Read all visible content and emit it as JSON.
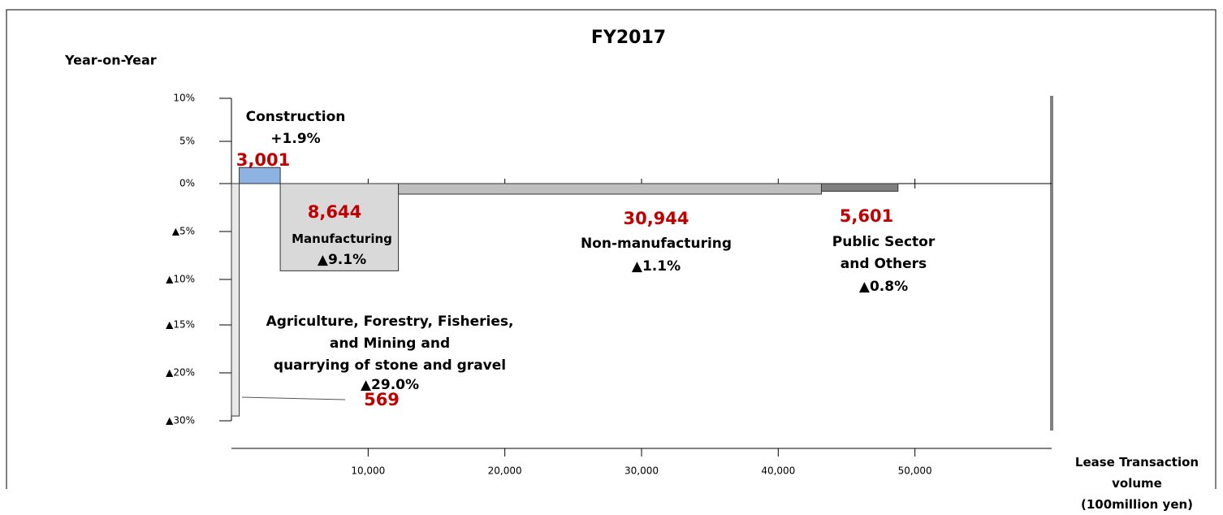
{
  "chart_data": {
    "type": "marimekko",
    "title": "FY2017",
    "ylabel": "Year-on-Year",
    "xlabel": "Lease Transaction volume\n(100million yen)",
    "categories": [
      "Agriculture, Forestry, Fisheries,\nand Mining and\nquarrying of stone and gravel",
      "Construction",
      "Manufacturing",
      "Non-manufacturing",
      "Public Sector\nand Others"
    ],
    "volumes": [
      569,
      3001,
      8644,
      30944,
      5601
    ],
    "volume_labels": [
      "569",
      "3,001",
      "8,644",
      "30,944",
      "5,601"
    ],
    "values": [
      -29.0,
      1.9,
      -9.1,
      -1.1,
      -0.8
    ],
    "value_labels": [
      "▲29.0%",
      "+1.9%",
      "▲9.1%",
      "▲1.1%",
      "▲0.8%"
    ],
    "colors": [
      "#e8e8e8",
      "#8db3e2",
      "#d9d9d9",
      "#bfbfbf",
      "#808080"
    ],
    "xlim": [
      0,
      60000
    ],
    "xticks": [
      {
        "value": 10000,
        "label": "10,000"
      },
      {
        "value": 20000,
        "label": "20,000"
      },
      {
        "value": 30000,
        "label": "30,000"
      },
      {
        "value": 40000,
        "label": "40,000"
      },
      {
        "value": 50000,
        "label": "50,000"
      }
    ],
    "ylim": [
      -30,
      10
    ],
    "yticks": [
      {
        "value": 10,
        "label": "10%"
      },
      {
        "value": 5,
        "label": "5%"
      },
      {
        "value": 0,
        "label": "0%"
      },
      {
        "value": -5,
        "label": "▲5%"
      },
      {
        "value": -10,
        "label": "▲10%"
      },
      {
        "value": -15,
        "label": "▲15%"
      },
      {
        "value": -20,
        "label": "▲20%"
      },
      {
        "value": -30,
        "label": "▲30%"
      }
    ]
  }
}
